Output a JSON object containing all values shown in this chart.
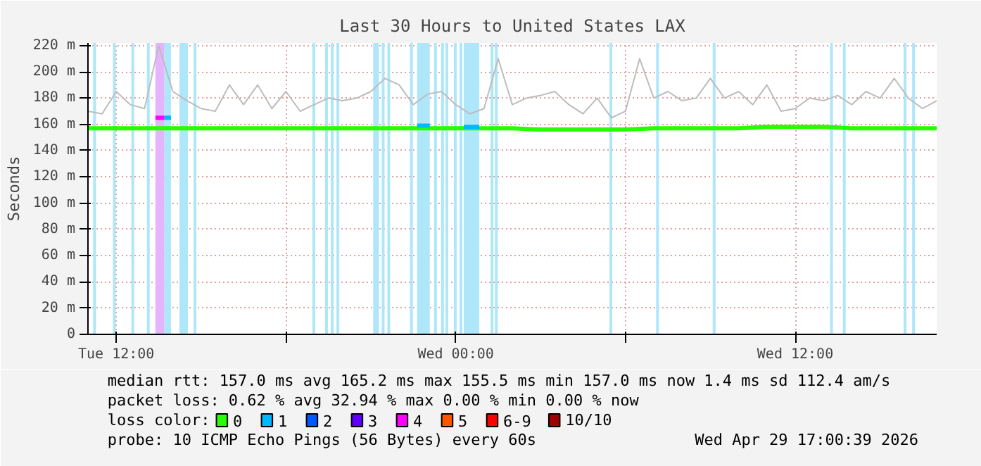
{
  "chart_data": {
    "type": "line",
    "title": "Last 30 Hours to United States LAX",
    "ylabel": "Seconds",
    "legend_title": "loss color:",
    "xlim": [
      "2026-04-28T11:00",
      "2026-04-29T17:00"
    ],
    "xticks": [
      {
        "value": "2026-04-28T12:00",
        "label": "Tue 12:00"
      },
      {
        "value": "2026-04-28T18:00",
        "label": null
      },
      {
        "value": "2026-04-29T00:00",
        "label": "Wed 00:00"
      },
      {
        "value": "2026-04-29T06:00",
        "label": null
      },
      {
        "value": "2026-04-29T12:00",
        "label": "Wed 12:00"
      }
    ],
    "ylim": [
      0,
      222
    ],
    "yticks": [
      0,
      {
        "value": 20,
        "label": "20 m"
      },
      {
        "value": 40,
        "label": "40 m"
      },
      {
        "value": 60,
        "label": "60 m"
      },
      {
        "value": 80,
        "label": "80 m"
      },
      {
        "value": 100,
        "label": "100 m"
      },
      {
        "value": 120,
        "label": "120 m"
      },
      {
        "value": 140,
        "label": "140 m"
      },
      {
        "value": 160,
        "label": "160 m"
      },
      {
        "value": 180,
        "label": "180 m"
      },
      {
        "value": 200,
        "label": "200 m"
      },
      {
        "value": 220,
        "label": "220 m"
      }
    ],
    "grid": true,
    "legend": "bottom",
    "bands": [
      {
        "axis": "x",
        "from": "2026-04-28T11:11",
        "to": "2026-04-28T11:17",
        "color": "#aee6fa"
      },
      {
        "axis": "x",
        "from": "2026-04-28T11:53",
        "to": "2026-04-28T11:59",
        "color": "#aee6fa"
      },
      {
        "axis": "x",
        "from": "2026-04-28T12:32",
        "to": "2026-04-28T12:38",
        "color": "#aee6fa"
      },
      {
        "axis": "x",
        "from": "2026-04-28T13:05",
        "to": "2026-04-28T13:11",
        "color": "#aee6fa"
      },
      {
        "axis": "x",
        "from": "2026-04-28T13:23",
        "to": "2026-04-28T13:42",
        "color": "#e6b4ff"
      },
      {
        "axis": "x",
        "from": "2026-04-28T13:42",
        "to": "2026-04-28T13:56",
        "color": "#aee6fa"
      },
      {
        "axis": "x",
        "from": "2026-04-28T14:14",
        "to": "2026-04-28T14:32",
        "color": "#aee6fa"
      },
      {
        "axis": "x",
        "from": "2026-04-28T14:44",
        "to": "2026-04-28T14:50",
        "color": "#aee6fa"
      },
      {
        "axis": "x",
        "from": "2026-04-28T18:56",
        "to": "2026-04-28T19:02",
        "color": "#aee6fa"
      },
      {
        "axis": "x",
        "from": "2026-04-28T19:23",
        "to": "2026-04-28T19:29",
        "color": "#aee6fa"
      },
      {
        "axis": "x",
        "from": "2026-04-28T19:35",
        "to": "2026-04-28T19:41",
        "color": "#aee6fa"
      },
      {
        "axis": "x",
        "from": "2026-04-28T19:47",
        "to": "2026-04-28T19:53",
        "color": "#aee6fa"
      },
      {
        "axis": "x",
        "from": "2026-04-28T21:05",
        "to": "2026-04-28T21:17",
        "color": "#aee6fa"
      },
      {
        "axis": "x",
        "from": "2026-04-28T21:23",
        "to": "2026-04-28T21:29",
        "color": "#aee6fa"
      },
      {
        "axis": "x",
        "from": "2026-04-28T21:35",
        "to": "2026-04-28T21:41",
        "color": "#aee6fa"
      },
      {
        "axis": "x",
        "from": "2026-04-28T22:23",
        "to": "2026-04-28T22:29",
        "color": "#aee6fa"
      },
      {
        "axis": "x",
        "from": "2026-04-28T22:38",
        "to": "2026-04-28T23:05",
        "color": "#aee6fa"
      },
      {
        "axis": "x",
        "from": "2026-04-28T23:14",
        "to": "2026-04-28T23:20",
        "color": "#aee6fa"
      },
      {
        "axis": "x",
        "from": "2026-04-28T23:29",
        "to": "2026-04-28T23:35",
        "color": "#aee6fa"
      },
      {
        "axis": "x",
        "from": "2026-04-28T23:38",
        "to": "2026-04-28T23:44",
        "color": "#aee6fa"
      },
      {
        "axis": "x",
        "from": "2026-04-28T23:56",
        "to": "2026-04-29T00:02",
        "color": "#aee6fa"
      },
      {
        "axis": "x",
        "from": "2026-04-29T00:08",
        "to": "2026-04-29T00:14",
        "color": "#aee6fa"
      },
      {
        "axis": "x",
        "from": "2026-04-29T00:17",
        "to": "2026-04-29T00:50",
        "color": "#aee6fa"
      },
      {
        "axis": "x",
        "from": "2026-04-29T01:14",
        "to": "2026-04-29T01:20",
        "color": "#aee6fa"
      },
      {
        "axis": "x",
        "from": "2026-04-29T01:23",
        "to": "2026-04-29T01:29",
        "color": "#aee6fa"
      },
      {
        "axis": "x",
        "from": "2026-04-29T05:26",
        "to": "2026-04-29T05:32",
        "color": "#aee6fa"
      },
      {
        "axis": "x",
        "from": "2026-04-29T07:05",
        "to": "2026-04-29T07:11",
        "color": "#aee6fa"
      },
      {
        "axis": "x",
        "from": "2026-04-29T09:05",
        "to": "2026-04-29T09:11",
        "color": "#aee6fa"
      },
      {
        "axis": "x",
        "from": "2026-04-29T13:14",
        "to": "2026-04-29T13:20",
        "color": "#aee6fa"
      },
      {
        "axis": "x",
        "from": "2026-04-29T13:41",
        "to": "2026-04-29T13:47",
        "color": "#aee6fa"
      },
      {
        "axis": "x",
        "from": "2026-04-29T15:50",
        "to": "2026-04-29T15:56",
        "color": "#aee6fa"
      },
      {
        "axis": "x",
        "from": "2026-04-29T16:08",
        "to": "2026-04-29T16:14",
        "color": "#aee6fa"
      }
    ],
    "series": [
      {
        "color": "#bdbdbd",
        "x": [
          "2026-04-28T11:00",
          "2026-04-28T11:30",
          "2026-04-28T12:00",
          "2026-04-28T12:30",
          "2026-04-28T13:00",
          "2026-04-28T13:30",
          "2026-04-28T14:00",
          "2026-04-28T14:30",
          "2026-04-28T15:00",
          "2026-04-28T15:30",
          "2026-04-28T16:00",
          "2026-04-28T16:30",
          "2026-04-28T17:00",
          "2026-04-28T17:30",
          "2026-04-28T18:00",
          "2026-04-28T18:30",
          "2026-04-28T19:00",
          "2026-04-28T19:30",
          "2026-04-28T20:00",
          "2026-04-28T20:30",
          "2026-04-28T21:00",
          "2026-04-28T21:30",
          "2026-04-28T22:00",
          "2026-04-28T22:30",
          "2026-04-28T23:00",
          "2026-04-28T23:30",
          "2026-04-29T00:00",
          "2026-04-29T00:30",
          "2026-04-29T01:00",
          "2026-04-29T01:30",
          "2026-04-29T02:00",
          "2026-04-29T02:30",
          "2026-04-29T03:00",
          "2026-04-29T03:30",
          "2026-04-29T04:00",
          "2026-04-29T04:30",
          "2026-04-29T05:00",
          "2026-04-29T05:30",
          "2026-04-29T06:00",
          "2026-04-29T06:30",
          "2026-04-29T07:00",
          "2026-04-29T07:30",
          "2026-04-29T08:00",
          "2026-04-29T08:30",
          "2026-04-29T09:00",
          "2026-04-29T09:30",
          "2026-04-29T10:00",
          "2026-04-29T10:30",
          "2026-04-29T11:00",
          "2026-04-29T11:30",
          "2026-04-29T12:00",
          "2026-04-29T12:30",
          "2026-04-29T13:00",
          "2026-04-29T13:30",
          "2026-04-29T14:00",
          "2026-04-29T14:30",
          "2026-04-29T15:00",
          "2026-04-29T15:30",
          "2026-04-29T16:00",
          "2026-04-29T16:30",
          "2026-04-29T17:00"
        ],
        "values": [
          170,
          168,
          185,
          175,
          172,
          220,
          185,
          178,
          172,
          170,
          190,
          175,
          190,
          172,
          185,
          170,
          175,
          180,
          178,
          180,
          185,
          195,
          190,
          175,
          183,
          185,
          175,
          168,
          172,
          210,
          175,
          180,
          182,
          185,
          175,
          168,
          180,
          165,
          170,
          210,
          180,
          185,
          178,
          180,
          195,
          180,
          185,
          175,
          190,
          170,
          172,
          180,
          178,
          182,
          175,
          185,
          180,
          195,
          180,
          172,
          178
        ]
      },
      {
        "name": "0",
        "color": "#26ff00",
        "x": [
          "2026-04-28T11:00",
          "2026-04-28T12:00",
          "2026-04-28T13:00",
          "2026-04-28T13:23",
          "2026-04-28T14:00",
          "2026-04-28T15:00",
          "2026-04-28T16:00",
          "2026-04-28T17:00",
          "2026-04-28T18:00",
          "2026-04-28T19:00",
          "2026-04-28T20:00",
          "2026-04-28T21:00",
          "2026-04-28T22:00",
          "2026-04-28T22:36",
          "2026-04-28T23:06",
          "2026-04-29T00:00",
          "2026-04-29T01:00",
          "2026-04-29T02:00",
          "2026-04-29T03:00",
          "2026-04-29T04:00",
          "2026-04-29T05:00",
          "2026-04-29T06:00",
          "2026-04-29T07:00",
          "2026-04-29T08:00",
          "2026-04-29T09:00",
          "2026-04-29T10:00",
          "2026-04-29T11:00",
          "2026-04-29T12:00",
          "2026-04-29T13:00",
          "2026-04-29T14:00",
          "2026-04-29T15:00",
          "2026-04-29T16:00",
          "2026-04-29T17:00"
        ],
        "values": [
          157,
          157,
          157,
          157,
          157,
          157,
          157,
          157,
          157,
          157,
          157,
          157,
          157,
          157,
          157,
          157,
          157,
          157,
          156,
          156,
          156,
          156,
          157,
          157,
          157,
          157,
          158,
          158,
          158,
          157,
          157,
          157,
          157
        ]
      },
      {
        "name": "1",
        "color": "#00b8ff",
        "x": [
          "2026-04-28T13:42",
          "2026-04-28T13:56",
          "2026-04-28T14:00",
          "2026-04-28T22:38",
          "2026-04-28T23:05",
          "2026-04-28T23:12",
          "2026-04-29T00:17",
          "2026-04-29T00:50"
        ],
        "values": [
          165,
          165,
          null,
          159,
          159,
          null,
          158,
          158
        ]
      },
      {
        "name": "2",
        "color": "#0059ff"
      },
      {
        "name": "3",
        "color": "#5e00ff"
      },
      {
        "name": "4",
        "color": "#ff00ff",
        "x": [
          "2026-04-28T13:23",
          "2026-04-28T13:42"
        ],
        "values": [
          165,
          165
        ]
      },
      {
        "name": "5",
        "color": "#ff5500"
      },
      {
        "name": "6-9",
        "color": "#ff0000"
      },
      {
        "name": "10/10",
        "color": "#a10000"
      }
    ],
    "annotations": [
      "median rtt:  157.0 ms avg  165.2 ms max  155.5 ms min  157.0 ms now  1.4 ms sd  112.4   am/s",
      "packet loss: 0.62 % avg  32.94 % max  0.00 % min  0.00 % now",
      "probe:       10 ICMP Echo Pings (56 Bytes) every 60s",
      "Wed Apr 29 17:00:39 2026"
    ]
  }
}
